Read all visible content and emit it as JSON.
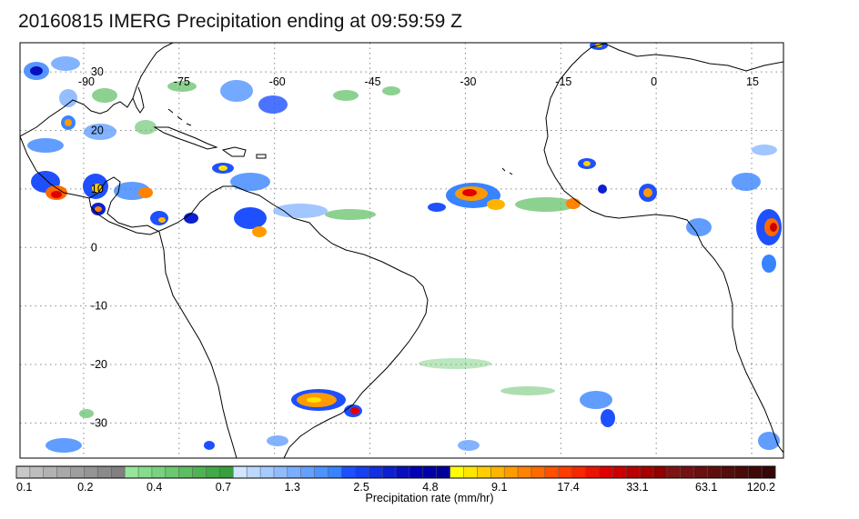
{
  "title": "20160815 IMERG Precipitation ending at 09:59:59 Z",
  "map": {
    "lon_labels": [
      "-90",
      "-75",
      "-60",
      "-45",
      "-30",
      "-15",
      "0",
      "15"
    ],
    "lat_labels": [
      "30",
      "20",
      "10",
      "0",
      "-10",
      "-20",
      "-30"
    ],
    "lon_values": [
      -90,
      -75,
      -60,
      -45,
      -30,
      -15,
      0,
      15
    ],
    "lat_values": [
      30,
      20,
      10,
      0,
      -10,
      -20,
      -30
    ],
    "extent": {
      "lon_min": -100,
      "lon_max": 20,
      "lat_min": -36,
      "lat_max": 35
    },
    "gridlines": "dotted",
    "coastline_color": "#000000"
  },
  "colorbar": {
    "label": "Precipitation rate (mm/hr)",
    "tick_labels": [
      "0.1",
      "0.2",
      "0.4",
      "0.7",
      "1.3",
      "2.5",
      "4.8",
      "9.1",
      "17.4",
      "33.1",
      "63.1",
      "120.2"
    ],
    "colors": [
      "#c8c8c8",
      "#bdbdbd",
      "#b2b2b2",
      "#a8a8a8",
      "#9e9e9e",
      "#949494",
      "#8a8a8a",
      "#808080",
      "#96e69a",
      "#86dc8c",
      "#78d27e",
      "#6ac870",
      "#5cbd62",
      "#4fb355",
      "#42a948",
      "#379f3d",
      "#d2e6ff",
      "#bcd8ff",
      "#a6caff",
      "#90bcff",
      "#7aaeff",
      "#64a0ff",
      "#4e92ff",
      "#3884ff",
      "#1e50ff",
      "#1840f0",
      "#1230e0",
      "#0c20d0",
      "#0610c0",
      "#0000b4",
      "#0000a8",
      "#00009c",
      "#ffff00",
      "#ffe600",
      "#ffcd00",
      "#ffb400",
      "#ff9b00",
      "#ff8200",
      "#ff6900",
      "#ff5000",
      "#ff3c00",
      "#f52800",
      "#eb1400",
      "#e10000",
      "#cd0000",
      "#b90000",
      "#a50000",
      "#910000",
      "#7d1414",
      "#731212",
      "#691010",
      "#5f0e0e",
      "#550c0c",
      "#4b0a0a",
      "#410808",
      "#370606"
    ]
  }
}
